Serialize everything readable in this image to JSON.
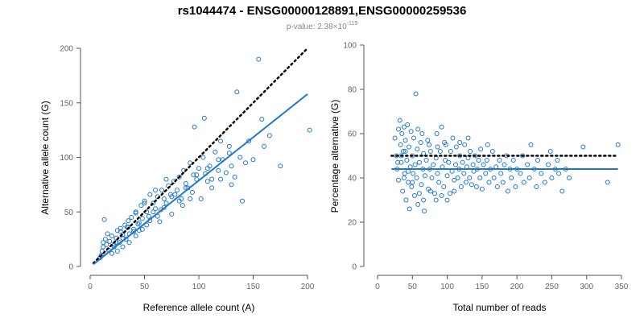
{
  "figure": {
    "title": "rs1044474 - ENSG00000128891,ENSG00000259536",
    "subtitle": {
      "prefix": "p-value: 2.38×10",
      "exponent": "-119"
    },
    "colors": {
      "points": "#1f77d0",
      "fit": "#1f77d0",
      "reference": "#000000",
      "axis": "#555555",
      "tick_text": "#666666"
    }
  },
  "chart_data": [
    {
      "type": "scatter",
      "name": "left-panel",
      "xlabel": "Reference allele count (A)",
      "ylabel": "Alternative allele count (G)",
      "xlim": [
        0,
        200
      ],
      "ylim": [
        0,
        200
      ],
      "xticks": [
        0,
        50,
        100,
        150,
        200
      ],
      "yticks": [
        0,
        50,
        100,
        150,
        200
      ],
      "fit_line": {
        "from": [
          3,
          2
        ],
        "to": [
          200,
          158
        ],
        "color": "#1f77d0"
      },
      "reference_line": {
        "from": [
          3,
          3
        ],
        "to": [
          200,
          200
        ],
        "style": "dotted",
        "color": "#000000"
      },
      "points": [
        [
          13,
          43
        ],
        [
          14,
          25
        ],
        [
          15,
          20
        ],
        [
          16,
          30
        ],
        [
          18,
          23
        ],
        [
          20,
          28
        ],
        [
          22,
          18
        ],
        [
          24,
          26
        ],
        [
          25,
          33
        ],
        [
          27,
          22
        ],
        [
          28,
          35
        ],
        [
          30,
          29
        ],
        [
          32,
          38
        ],
        [
          33,
          25
        ],
        [
          35,
          42
        ],
        [
          36,
          30
        ],
        [
          38,
          45
        ],
        [
          40,
          34
        ],
        [
          42,
          49
        ],
        [
          44,
          39
        ],
        [
          45,
          33
        ],
        [
          47,
          56
        ],
        [
          48,
          44
        ],
        [
          50,
          60
        ],
        [
          52,
          50
        ],
        [
          54,
          46
        ],
        [
          55,
          66
        ],
        [
          58,
          58
        ],
        [
          60,
          53
        ],
        [
          62,
          64
        ],
        [
          64,
          41
        ],
        [
          66,
          70
        ],
        [
          68,
          62
        ],
        [
          70,
          58
        ],
        [
          72,
          74
        ],
        [
          74,
          66
        ],
        [
          75,
          48
        ],
        [
          77,
          78
        ],
        [
          80,
          70
        ],
        [
          82,
          82
        ],
        [
          84,
          62
        ],
        [
          86,
          88
        ],
        [
          88,
          76
        ],
        [
          90,
          72
        ],
        [
          92,
          95
        ],
        [
          94,
          68
        ],
        [
          95,
          84
        ],
        [
          98,
          80
        ],
        [
          100,
          90
        ],
        [
          102,
          62
        ],
        [
          104,
          100
        ],
        [
          106,
          85
        ],
        [
          108,
          78
        ],
        [
          110,
          92
        ],
        [
          112,
          72
        ],
        [
          115,
          105
        ],
        [
          118,
          88
        ],
        [
          120,
          80
        ],
        [
          122,
          98
        ],
        [
          125,
          86
        ],
        [
          128,
          110
        ],
        [
          130,
          92
        ],
        [
          133,
          82
        ],
        [
          135,
          160
        ],
        [
          138,
          100
        ],
        [
          140,
          60
        ],
        [
          143,
          95
        ],
        [
          146,
          115
        ],
        [
          150,
          98
        ],
        [
          155,
          190
        ],
        [
          158,
          135
        ],
        [
          160,
          110
        ],
        [
          165,
          120
        ],
        [
          175,
          92
        ],
        [
          202,
          125
        ],
        [
          96,
          128
        ],
        [
          105,
          136
        ],
        [
          120,
          115
        ],
        [
          130,
          75
        ],
        [
          85,
          56
        ],
        [
          75,
          64
        ],
        [
          65,
          52
        ],
        [
          55,
          42
        ],
        [
          48,
          34
        ],
        [
          42,
          28
        ],
        [
          36,
          22
        ],
        [
          30,
          18
        ],
        [
          25,
          14
        ],
        [
          20,
          12
        ],
        [
          17,
          15
        ],
        [
          12,
          22
        ],
        [
          11,
          14
        ],
        [
          10,
          10
        ],
        [
          9,
          8
        ],
        [
          12,
          18
        ],
        [
          35,
          36
        ],
        [
          45,
          40
        ],
        [
          58,
          50
        ],
        [
          68,
          54
        ],
        [
          78,
          66
        ],
        [
          88,
          72
        ],
        [
          98,
          84
        ],
        [
          108,
          90
        ],
        [
          118,
          98
        ],
        [
          128,
          104
        ],
        [
          62,
          46
        ],
        [
          52,
          38
        ],
        [
          40,
          32
        ],
        [
          30,
          26
        ],
        [
          22,
          20
        ],
        [
          82,
          60
        ],
        [
          92,
          62
        ],
        [
          112,
          80
        ],
        [
          70,
          80
        ],
        [
          60,
          70
        ],
        [
          50,
          58
        ],
        [
          42,
          50
        ],
        [
          34,
          36
        ],
        [
          28,
          32
        ],
        [
          24,
          22
        ]
      ]
    },
    {
      "type": "scatter",
      "name": "right-panel",
      "xlabel": "Total number of reads",
      "ylabel": "Percentage alternative (G)",
      "xlim": [
        0,
        350
      ],
      "ylim": [
        0,
        100
      ],
      "xticks": [
        0,
        50,
        100,
        150,
        200,
        250,
        300,
        350
      ],
      "yticks": [
        0,
        20,
        40,
        60,
        80,
        100
      ],
      "fit_line": {
        "y": 44,
        "from_x": 20,
        "to_x": 345,
        "color": "#1f77d0"
      },
      "reference_line": {
        "y": 50,
        "from_x": 20,
        "to_x": 345,
        "style": "dotted",
        "color": "#000000"
      },
      "points": [
        [
          25,
          58
        ],
        [
          27,
          50
        ],
        [
          28,
          44
        ],
        [
          30,
          62
        ],
        [
          30,
          39
        ],
        [
          32,
          66
        ],
        [
          33,
          55
        ],
        [
          34,
          47
        ],
        [
          35,
          60
        ],
        [
          36,
          34
        ],
        [
          37,
          52
        ],
        [
          38,
          63
        ],
        [
          39,
          42
        ],
        [
          40,
          57
        ],
        [
          41,
          30
        ],
        [
          42,
          48
        ],
        [
          43,
          64
        ],
        [
          44,
          38
        ],
        [
          45,
          54
        ],
        [
          46,
          26
        ],
        [
          47,
          45
        ],
        [
          48,
          61
        ],
        [
          49,
          36
        ],
        [
          50,
          50
        ],
        [
          51,
          42
        ],
        [
          52,
          58
        ],
        [
          53,
          32
        ],
        [
          54,
          46
        ],
        [
          55,
          78
        ],
        [
          56,
          40
        ],
        [
          57,
          53
        ],
        [
          58,
          28
        ],
        [
          60,
          47
        ],
        [
          62,
          56
        ],
        [
          63,
          37
        ],
        [
          65,
          44
        ],
        [
          66,
          51
        ],
        [
          67,
          25
        ],
        [
          68,
          41
        ],
        [
          70,
          48
        ],
        [
          72,
          57
        ],
        [
          73,
          35
        ],
        [
          75,
          44
        ],
        [
          76,
          52
        ],
        [
          78,
          40
        ],
        [
          80,
          46
        ],
        [
          82,
          33
        ],
        [
          84,
          49
        ],
        [
          85,
          60
        ],
        [
          86,
          42
        ],
        [
          88,
          38
        ],
        [
          90,
          52
        ],
        [
          92,
          63
        ],
        [
          93,
          45
        ],
        [
          95,
          36
        ],
        [
          97,
          48
        ],
        [
          98,
          55
        ],
        [
          100,
          41
        ],
        [
          102,
          47
        ],
        [
          104,
          33
        ],
        [
          105,
          52
        ],
        [
          107,
          43
        ],
        [
          108,
          58
        ],
        [
          110,
          39
        ],
        [
          112,
          46
        ],
        [
          113,
          54
        ],
        [
          115,
          40
        ],
        [
          117,
          44
        ],
        [
          118,
          50
        ],
        [
          120,
          36
        ],
        [
          122,
          47
        ],
        [
          124,
          42
        ],
        [
          125,
          55
        ],
        [
          127,
          38
        ],
        [
          128,
          45
        ],
        [
          130,
          49
        ],
        [
          132,
          40
        ],
        [
          133,
          52
        ],
        [
          135,
          37
        ],
        [
          137,
          46
        ],
        [
          138,
          43
        ],
        [
          140,
          50
        ],
        [
          142,
          36
        ],
        [
          143,
          44
        ],
        [
          145,
          48
        ],
        [
          147,
          40
        ],
        [
          148,
          53
        ],
        [
          150,
          35
        ],
        [
          152,
          46
        ],
        [
          155,
          42
        ],
        [
          157,
          48
        ],
        [
          158,
          55
        ],
        [
          160,
          38
        ],
        [
          162,
          44
        ],
        [
          165,
          52
        ],
        [
          167,
          40
        ],
        [
          170,
          45
        ],
        [
          172,
          36
        ],
        [
          175,
          48
        ],
        [
          177,
          42
        ],
        [
          180,
          38
        ],
        [
          182,
          46
        ],
        [
          185,
          50
        ],
        [
          187,
          34
        ],
        [
          190,
          44
        ],
        [
          192,
          40
        ],
        [
          195,
          48
        ],
        [
          198,
          36
        ],
        [
          200,
          44
        ],
        [
          205,
          42
        ],
        [
          208,
          50
        ],
        [
          210,
          38
        ],
        [
          215,
          46
        ],
        [
          218,
          40
        ],
        [
          220,
          55
        ],
        [
          225,
          44
        ],
        [
          228,
          36
        ],
        [
          230,
          48
        ],
        [
          235,
          42
        ],
        [
          240,
          38
        ],
        [
          245,
          46
        ],
        [
          248,
          52
        ],
        [
          250,
          40
        ],
        [
          255,
          44
        ],
        [
          258,
          48
        ],
        [
          260,
          42
        ],
        [
          265,
          34
        ],
        [
          270,
          44
        ],
        [
          275,
          40
        ],
        [
          295,
          54
        ],
        [
          330,
          38
        ],
        [
          345,
          55
        ],
        [
          130,
          58
        ],
        [
          118,
          56
        ],
        [
          96,
          56
        ],
        [
          86,
          54
        ],
        [
          74,
          55
        ],
        [
          64,
          60
        ],
        [
          58,
          62
        ],
        [
          40,
          52
        ],
        [
          34,
          50
        ],
        [
          29,
          47
        ],
        [
          110,
          34
        ],
        [
          100,
          30
        ],
        [
          92,
          32
        ],
        [
          84,
          30
        ],
        [
          76,
          34
        ],
        [
          66,
          30
        ],
        [
          60,
          33
        ],
        [
          50,
          38
        ],
        [
          44,
          43
        ],
        [
          38,
          40
        ]
      ]
    }
  ]
}
